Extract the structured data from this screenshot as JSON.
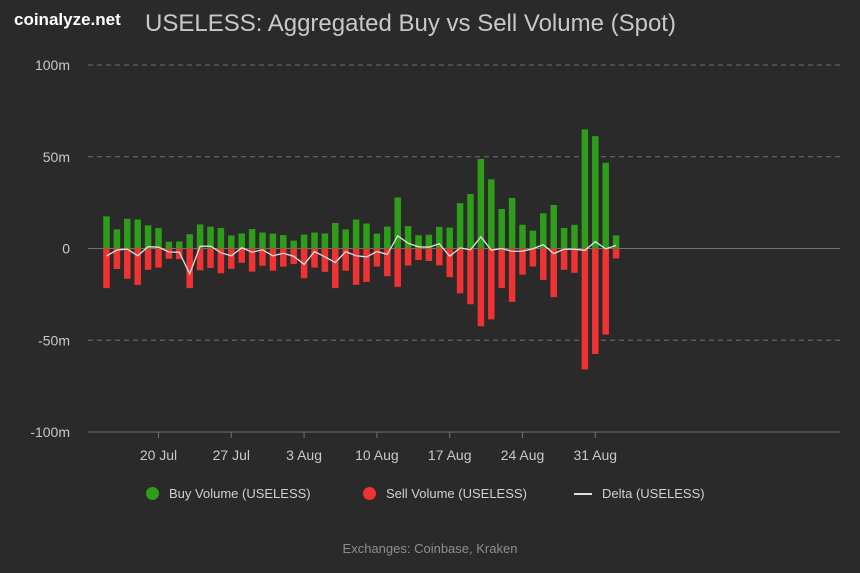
{
  "brand": "coinalyze.net",
  "title": "USELESS: Aggregated Buy vs Sell Volume (Spot)",
  "credits": "Exchanges: Coinbase, Kraken",
  "colors": {
    "buy": "#2e9e1a",
    "sell": "#f03232",
    "delta": "#e0e0e0",
    "grid": "#707073",
    "text": "#c8c8c8"
  },
  "chart_data": {
    "type": "bar",
    "title": "USELESS: Aggregated Buy vs Sell Volume (Spot)",
    "xlabel": "",
    "ylabel": "",
    "ylim": [
      -100,
      100
    ],
    "y_unit": "m",
    "y_ticks": [
      "100m",
      "50m",
      "0",
      "-50m",
      "-100m"
    ],
    "x_tick_labels": [
      "20 Jul",
      "27 Jul",
      "3 Aug",
      "10 Aug",
      "17 Aug",
      "24 Aug",
      "31 Aug"
    ],
    "x": [
      "15 Jul",
      "16 Jul",
      "17 Jul",
      "18 Jul",
      "19 Jul",
      "20 Jul",
      "21 Jul",
      "22 Jul",
      "23 Jul",
      "24 Jul",
      "25 Jul",
      "26 Jul",
      "27 Jul",
      "28 Jul",
      "29 Jul",
      "30 Jul",
      "31 Jul",
      "1 Aug",
      "2 Aug",
      "3 Aug",
      "4 Aug",
      "5 Aug",
      "6 Aug",
      "7 Aug",
      "8 Aug",
      "9 Aug",
      "10 Aug",
      "11 Aug",
      "12 Aug",
      "13 Aug",
      "14 Aug",
      "15 Aug",
      "16 Aug",
      "17 Aug",
      "18 Aug",
      "19 Aug",
      "20 Aug",
      "21 Aug",
      "22 Aug",
      "23 Aug",
      "24 Aug",
      "25 Aug",
      "26 Aug",
      "27 Aug",
      "28 Aug",
      "29 Aug",
      "30 Aug",
      "31 Aug",
      "1 Sep",
      "2 Sep",
      "3 Sep"
    ],
    "series": [
      {
        "name": "Buy Volume (USELESS)",
        "type": "bar",
        "values": [
          17.5,
          10.4,
          16.2,
          15.8,
          12.6,
          11.1,
          3.7,
          3.8,
          7.8,
          13.1,
          11.9,
          11.2,
          7.1,
          8.2,
          10.6,
          8.7,
          8.1,
          7.3,
          4.3,
          7.6,
          8.7,
          8.2,
          13.9,
          10.4,
          15.8,
          13.6,
          8.1,
          11.9,
          27.8,
          12.2,
          7.2,
          7.5,
          11.8,
          11.4,
          24.7,
          29.7,
          48.8,
          37.7,
          21.5,
          27.5,
          12.9,
          9.7,
          19.2,
          23.7,
          11.2,
          12.9,
          64.9,
          61.2,
          46.7,
          7.1,
          0
        ]
      },
      {
        "name": "Sell Volume (USELESS)",
        "type": "bar",
        "values": [
          -21.6,
          -11.2,
          -16.5,
          -19.8,
          -11.6,
          -10.4,
          -5.6,
          -5.8,
          -21.6,
          -11.9,
          -10.6,
          -13.5,
          -11.1,
          -7.8,
          -12.6,
          -9.4,
          -12.1,
          -9.9,
          -8.5,
          -16.2,
          -10.4,
          -12.7,
          -21.6,
          -12.1,
          -19.8,
          -18.2,
          -9.8,
          -15.1,
          -20.9,
          -9.3,
          -6.3,
          -6.8,
          -9.2,
          -15.6,
          -24.4,
          -30.4,
          -42.4,
          -38.6,
          -21.5,
          -29.1,
          -14.3,
          -9.8,
          -17.1,
          -26.5,
          -11.6,
          -13.3,
          -65.9,
          -57.5,
          -46.9,
          -5.4,
          0
        ]
      },
      {
        "name": "Delta (USELESS)",
        "type": "line",
        "values": [
          -4.1,
          -0.8,
          -0.3,
          -4.0,
          1.0,
          0.7,
          -1.9,
          -2.0,
          -13.8,
          1.2,
          1.3,
          -2.3,
          -4.0,
          0.4,
          -2.0,
          -0.7,
          -4.0,
          -2.6,
          -4.2,
          -8.6,
          -1.7,
          -4.5,
          -7.7,
          -1.7,
          -4.0,
          -4.6,
          -1.7,
          -3.2,
          6.9,
          2.9,
          0.9,
          0.7,
          2.6,
          -4.2,
          0.3,
          -0.7,
          6.4,
          -0.9,
          0.0,
          -1.6,
          -1.4,
          -0.1,
          2.1,
          -2.8,
          -0.4,
          -0.4,
          -1.0,
          3.7,
          -0.2,
          1.7,
          0
        ]
      }
    ],
    "legend_position": "bottom-center",
    "grid": true
  }
}
